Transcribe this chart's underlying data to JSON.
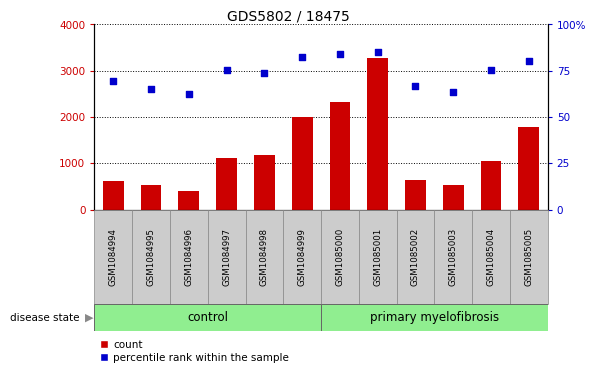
{
  "title": "GDS5802 / 18475",
  "samples": [
    "GSM1084994",
    "GSM1084995",
    "GSM1084996",
    "GSM1084997",
    "GSM1084998",
    "GSM1084999",
    "GSM1085000",
    "GSM1085001",
    "GSM1085002",
    "GSM1085003",
    "GSM1085004",
    "GSM1085005"
  ],
  "counts": [
    620,
    530,
    400,
    1120,
    1180,
    2000,
    2330,
    3280,
    640,
    530,
    1050,
    1780
  ],
  "percentiles": [
    69.5,
    65.0,
    62.3,
    75.5,
    74.0,
    82.3,
    84.0,
    85.0,
    66.5,
    63.3,
    75.5,
    80.0
  ],
  "count_color": "#cc0000",
  "percentile_color": "#0000cc",
  "bar_width": 0.55,
  "ylim_left": [
    0,
    4000
  ],
  "ylim_right": [
    0,
    100
  ],
  "yticks_left": [
    0,
    1000,
    2000,
    3000,
    4000
  ],
  "yticks_right": [
    0,
    25,
    50,
    75,
    100
  ],
  "ytick_labels_left": [
    "0",
    "1000",
    "2000",
    "3000",
    "4000"
  ],
  "ytick_labels_right": [
    "0",
    "25",
    "50",
    "75",
    "100%"
  ],
  "control_samples": 6,
  "control_label": "control",
  "disease_label": "primary myelofibrosis",
  "disease_state_label": "disease state",
  "group_color": "#90ee90",
  "xlabel_area_color": "#cccccc",
  "legend_count": "count",
  "legend_pct": "percentile rank within the sample"
}
